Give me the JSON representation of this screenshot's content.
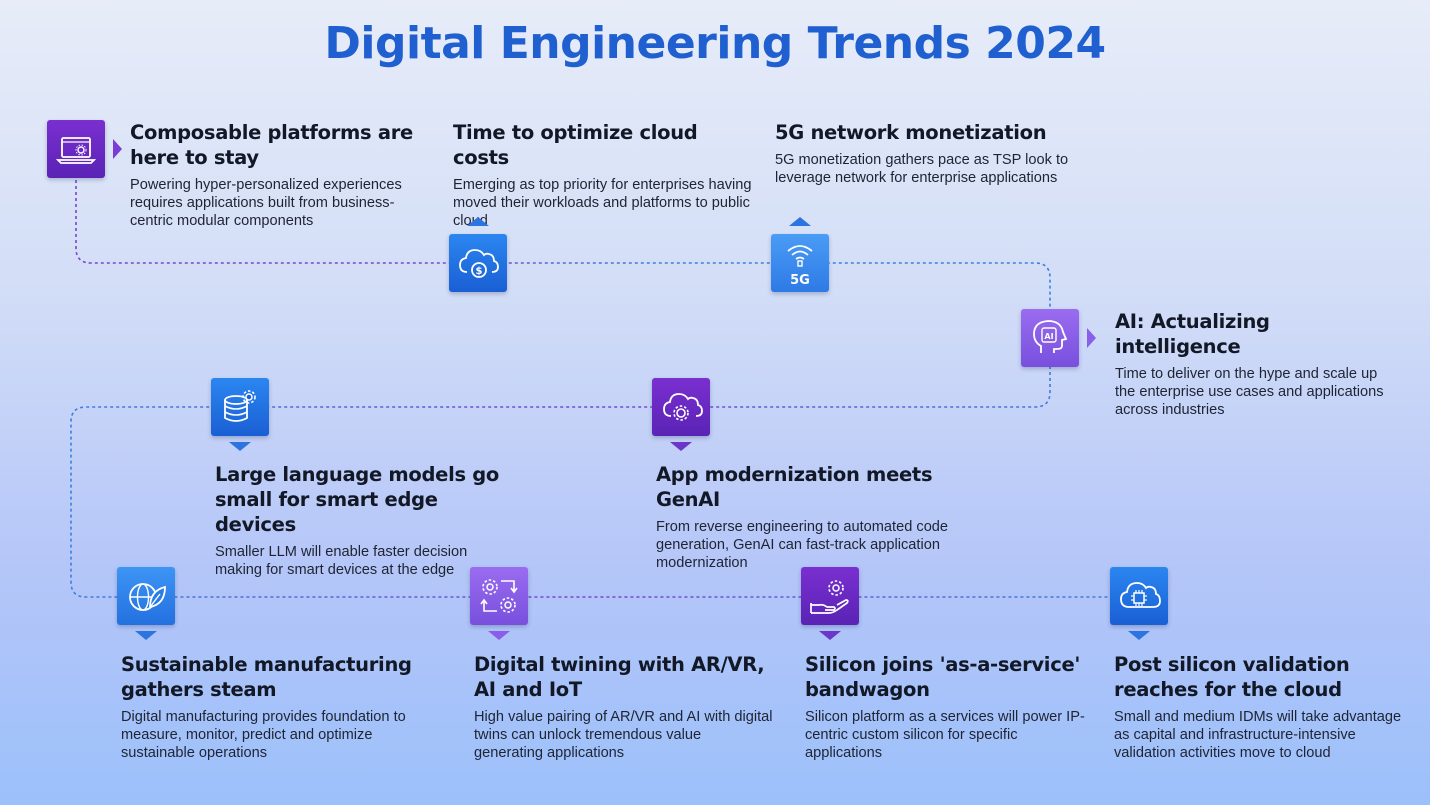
{
  "title": "Digital Engineering Trends 2024",
  "colors": {
    "title": "#1f5fd0",
    "blue_icon": "#2d74e0",
    "violet_icon": "#6a2dc8",
    "lavender_icon": "#8a5ee8",
    "connector_blue": "#3d7fe0",
    "connector_violet": "#7a45d0"
  },
  "trends": [
    {
      "icon": "laptop-gear-icon",
      "heading": "Composable platforms are here to stay",
      "body": "Powering hyper-personalized experiences requires applications built from business-centric modular components"
    },
    {
      "icon": "cloud-dollar-icon",
      "heading": "Time to optimize cloud costs",
      "body": "Emerging as top priority for enterprises having moved their workloads and platforms to public cloud"
    },
    {
      "icon": "5g-signal-icon",
      "icon_label": "5G",
      "heading": "5G network monetization",
      "body": "5G monetization gathers pace as TSP look to leverage network for enterprise applications"
    },
    {
      "icon": "ai-head-icon",
      "icon_label": "AI",
      "heading": "AI: Actualizing intelligence",
      "body": "Time to deliver on the hype and scale up the enterprise use cases and applications across industries"
    },
    {
      "icon": "cloud-gear-icon",
      "heading": "App modernization meets GenAI",
      "body": "From reverse engineering to automated code generation, GenAI can fast-track application modernization"
    },
    {
      "icon": "database-gear-icon",
      "heading": "Large language models go small for smart edge devices",
      "body": "Smaller LLM will enable faster decision making for smart devices at the edge"
    },
    {
      "icon": "globe-leaf-icon",
      "heading": "Sustainable manufacturing gathers steam",
      "body": "Digital manufacturing provides foundation to measure, monitor, predict and optimize sustainable operations"
    },
    {
      "icon": "twin-gears-icon",
      "heading": "Digital twining with AR/VR, AI and IoT",
      "body": "High value pairing of AR/VR and AI with digital twins can unlock tremendous value generating applications"
    },
    {
      "icon": "hand-gear-icon",
      "heading": "Silicon joins 'as-a-service' bandwagon",
      "body": "Silicon platform as a services will power IP-centric custom silicon for specific applications"
    },
    {
      "icon": "cloud-chip-icon",
      "heading": "Post silicon validation reaches for the cloud",
      "body": "Small and medium IDMs will take advantage as capital and infrastructure-intensive validation activities move to cloud"
    }
  ]
}
